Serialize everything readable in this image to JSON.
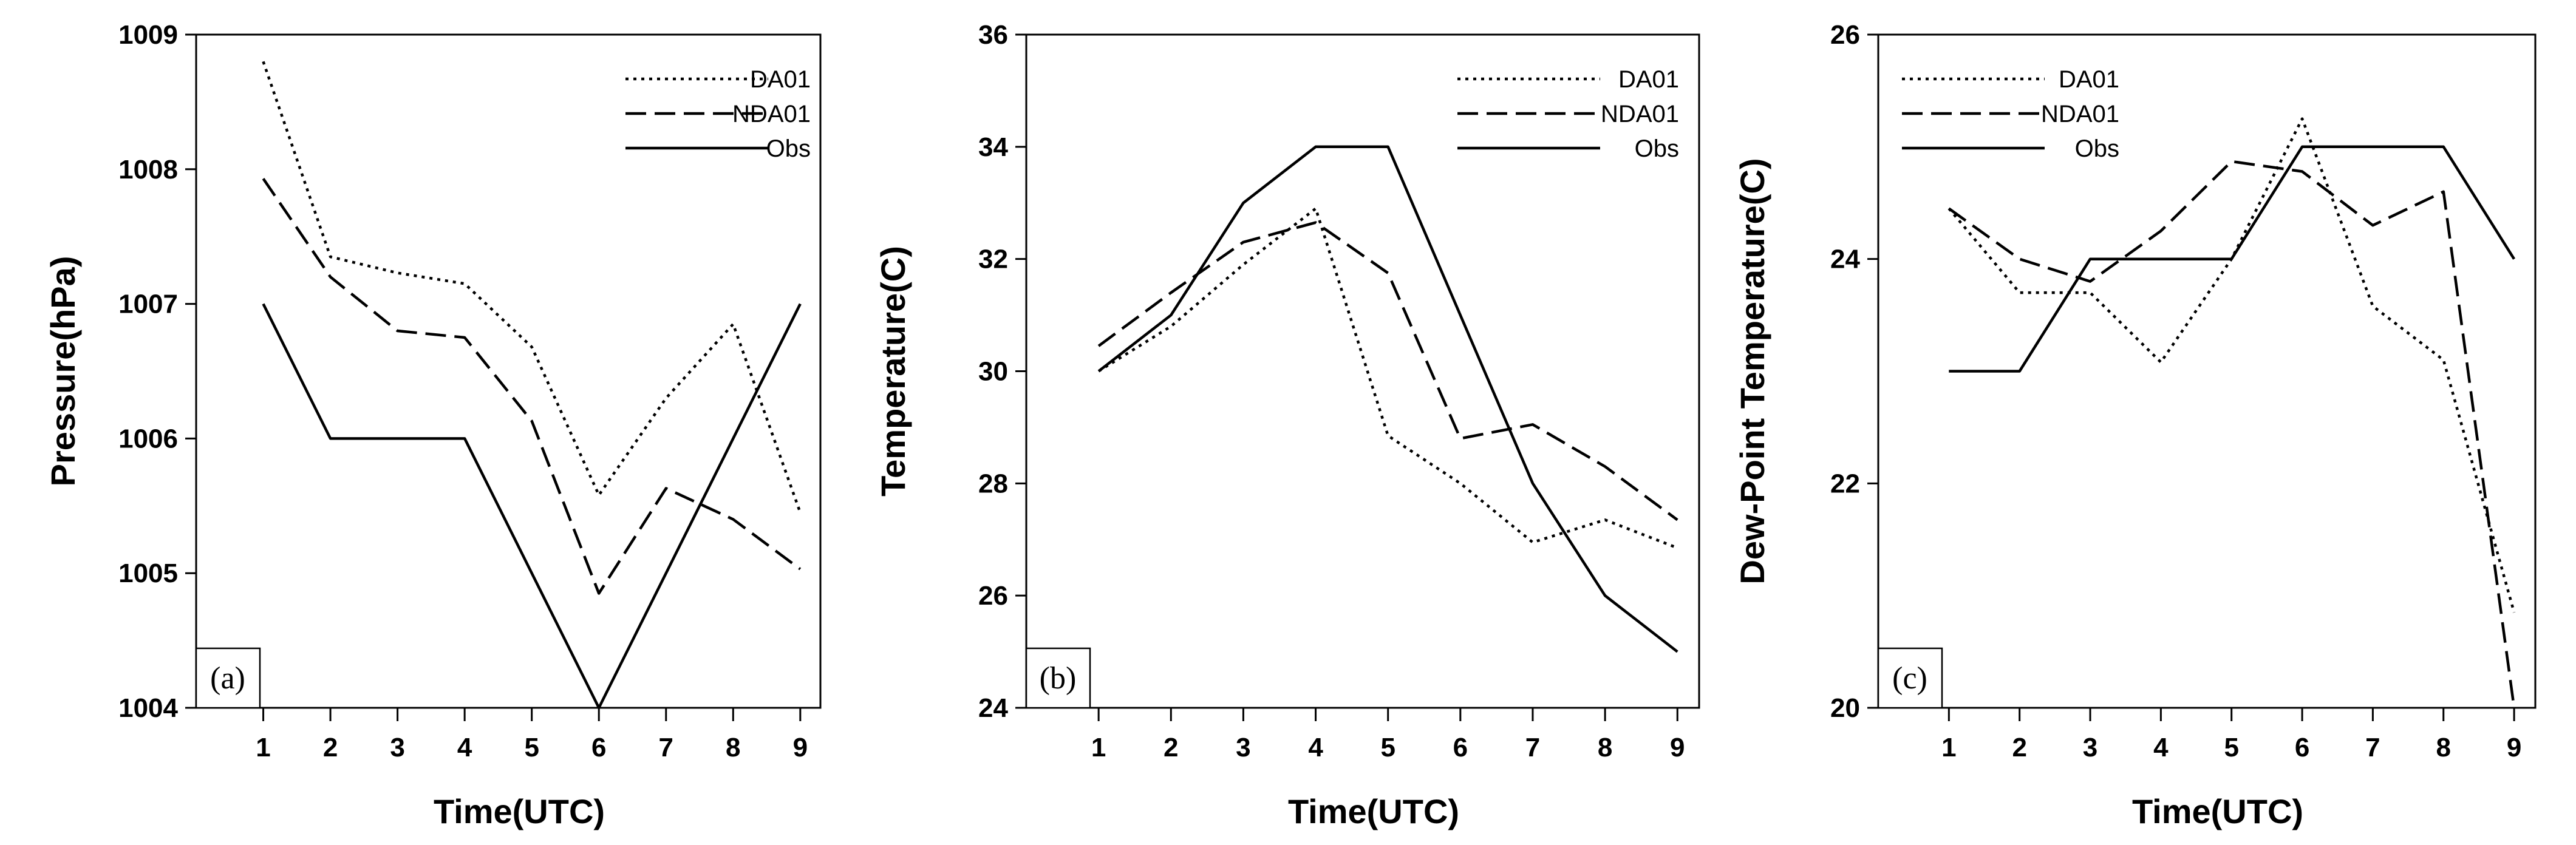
{
  "chart_data": [
    {
      "type": "line",
      "panel_label": "(a)",
      "xlabel": "Time(UTC)",
      "ylabel": "Pressure(hPa)",
      "x": [
        1,
        2,
        3,
        4,
        5,
        6,
        7,
        8,
        9
      ],
      "xticks": [
        "1",
        "2",
        "3",
        "4",
        "5",
        "6",
        "7",
        "8",
        "9"
      ],
      "xlim": [
        0,
        9.3
      ],
      "ylim": [
        1004,
        1009
      ],
      "yticks": [
        "1004",
        "1005",
        "1006",
        "1007",
        "1008",
        "1009"
      ],
      "legend_position": "top-right",
      "series": [
        {
          "name": "DA01",
          "style": "dotted",
          "values": [
            1008.8,
            1007.35,
            1007.23,
            1007.15,
            1006.68,
            1005.58,
            1006.3,
            1006.85,
            1005.45
          ]
        },
        {
          "name": "NDA01",
          "style": "dashed",
          "values": [
            1007.93,
            1007.2,
            1006.8,
            1006.75,
            1006.13,
            1004.85,
            1005.63,
            1005.4,
            1005.03
          ]
        },
        {
          "name": "Obs",
          "style": "solid",
          "values": [
            1007,
            1006,
            1006,
            1006,
            1005,
            1004,
            1005,
            1006,
            1007
          ]
        }
      ]
    },
    {
      "type": "line",
      "panel_label": "(b)",
      "xlabel": "Time(UTC)",
      "ylabel": "Temperature(C)",
      "x": [
        1,
        2,
        3,
        4,
        5,
        6,
        7,
        8,
        9
      ],
      "xticks": [
        "1",
        "2",
        "3",
        "4",
        "5",
        "6",
        "7",
        "8",
        "9"
      ],
      "xlim": [
        0,
        9.3
      ],
      "ylim": [
        24,
        36
      ],
      "yticks": [
        "24",
        "26",
        "28",
        "30",
        "32",
        "34",
        "36"
      ],
      "legend_position": "top-right",
      "series": [
        {
          "name": "DA01",
          "style": "dotted",
          "values": [
            30.0,
            30.8,
            31.9,
            32.9,
            28.85,
            28.0,
            26.95,
            27.35,
            26.85
          ]
        },
        {
          "name": "NDA01",
          "style": "dashed",
          "values": [
            30.45,
            31.4,
            32.3,
            32.65,
            31.75,
            28.8,
            29.05,
            28.3,
            27.35
          ]
        },
        {
          "name": "Obs",
          "style": "solid",
          "values": [
            30,
            31,
            33,
            34,
            34,
            31,
            28,
            26,
            25
          ]
        }
      ]
    },
    {
      "type": "line",
      "panel_label": "(c)",
      "xlabel": "Time(UTC)",
      "ylabel": "Dew-Point Temperature(C)",
      "x": [
        1,
        2,
        3,
        4,
        5,
        6,
        7,
        8,
        9
      ],
      "xticks": [
        "1",
        "2",
        "3",
        "4",
        "5",
        "6",
        "7",
        "8",
        "9"
      ],
      "xlim": [
        0,
        9.3
      ],
      "ylim": [
        20,
        26
      ],
      "yticks": [
        "20",
        "22",
        "24",
        "26"
      ],
      "legend_position": "top-left",
      "series": [
        {
          "name": "DA01",
          "style": "dotted",
          "values": [
            24.45,
            23.7,
            23.7,
            23.08,
            24.0,
            25.25,
            23.58,
            23.1,
            20.85
          ]
        },
        {
          "name": "NDA01",
          "style": "dashed",
          "values": [
            24.45,
            24.0,
            23.8,
            24.25,
            24.87,
            24.78,
            24.3,
            24.6,
            20.0
          ]
        },
        {
          "name": "Obs",
          "style": "solid",
          "values": [
            23,
            23,
            24,
            24,
            24,
            25,
            25,
            25,
            24
          ]
        }
      ]
    }
  ]
}
